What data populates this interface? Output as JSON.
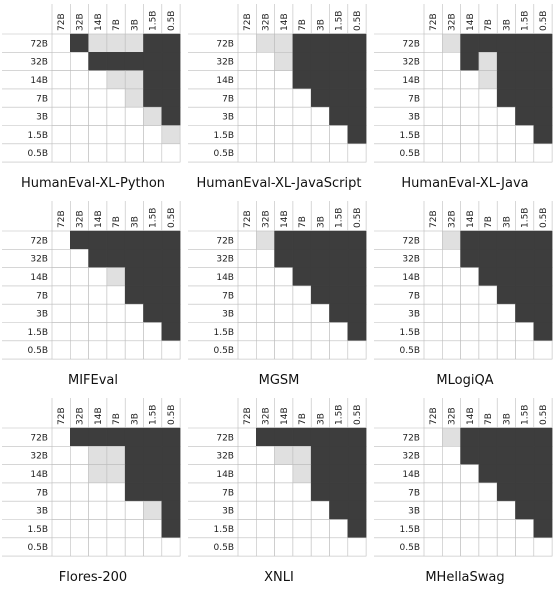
{
  "chart_data": [
    {
      "type": "heatmap",
      "title": "HumanEval-XL-Python",
      "categories": [
        "72B",
        "32B",
        "14B",
        "7B",
        "3B",
        "1.5B",
        "0.5B"
      ],
      "value_legend": {
        "0": "white",
        "1": "light gray",
        "2": "dark gray"
      },
      "colors": {
        "0": "#ffffff",
        "1": "#e0e0e0",
        "2": "#3d3d3d"
      },
      "matrix": [
        [
          0,
          2,
          1,
          1,
          1,
          2,
          2
        ],
        [
          0,
          0,
          2,
          2,
          2,
          2,
          2
        ],
        [
          0,
          0,
          0,
          1,
          1,
          2,
          2
        ],
        [
          0,
          0,
          0,
          0,
          1,
          2,
          2
        ],
        [
          0,
          0,
          0,
          0,
          0,
          1,
          2
        ],
        [
          0,
          0,
          0,
          0,
          0,
          0,
          1
        ],
        [
          0,
          0,
          0,
          0,
          0,
          0,
          0
        ]
      ]
    },
    {
      "type": "heatmap",
      "title": "HumanEval-XL-JavaScript",
      "categories": [
        "72B",
        "32B",
        "14B",
        "7B",
        "3B",
        "1.5B",
        "0.5B"
      ],
      "colors": {
        "0": "#ffffff",
        "1": "#e0e0e0",
        "2": "#3d3d3d"
      },
      "matrix": [
        [
          0,
          1,
          1,
          2,
          2,
          2,
          2
        ],
        [
          0,
          0,
          1,
          2,
          2,
          2,
          2
        ],
        [
          0,
          0,
          0,
          2,
          2,
          2,
          2
        ],
        [
          0,
          0,
          0,
          0,
          2,
          2,
          2
        ],
        [
          0,
          0,
          0,
          0,
          0,
          2,
          2
        ],
        [
          0,
          0,
          0,
          0,
          0,
          0,
          2
        ],
        [
          0,
          0,
          0,
          0,
          0,
          0,
          0
        ]
      ]
    },
    {
      "type": "heatmap",
      "title": "HumanEval-XL-Java",
      "categories": [
        "72B",
        "32B",
        "14B",
        "7B",
        "3B",
        "1.5B",
        "0.5B"
      ],
      "colors": {
        "0": "#ffffff",
        "1": "#e0e0e0",
        "2": "#3d3d3d"
      },
      "matrix": [
        [
          0,
          1,
          2,
          2,
          2,
          2,
          2
        ],
        [
          0,
          0,
          2,
          1,
          2,
          2,
          2
        ],
        [
          0,
          0,
          0,
          1,
          2,
          2,
          2
        ],
        [
          0,
          0,
          0,
          0,
          2,
          2,
          2
        ],
        [
          0,
          0,
          0,
          0,
          0,
          2,
          2
        ],
        [
          0,
          0,
          0,
          0,
          0,
          0,
          2
        ],
        [
          0,
          0,
          0,
          0,
          0,
          0,
          0
        ]
      ]
    },
    {
      "type": "heatmap",
      "title": "MIFEval",
      "categories": [
        "72B",
        "32B",
        "14B",
        "7B",
        "3B",
        "1.5B",
        "0.5B"
      ],
      "colors": {
        "0": "#ffffff",
        "1": "#e0e0e0",
        "2": "#3d3d3d"
      },
      "matrix": [
        [
          0,
          2,
          2,
          2,
          2,
          2,
          2
        ],
        [
          0,
          0,
          2,
          2,
          2,
          2,
          2
        ],
        [
          0,
          0,
          0,
          1,
          2,
          2,
          2
        ],
        [
          0,
          0,
          0,
          0,
          2,
          2,
          2
        ],
        [
          0,
          0,
          0,
          0,
          0,
          2,
          2
        ],
        [
          0,
          0,
          0,
          0,
          0,
          0,
          2
        ],
        [
          0,
          0,
          0,
          0,
          0,
          0,
          0
        ]
      ]
    },
    {
      "type": "heatmap",
      "title": "MGSM",
      "categories": [
        "72B",
        "32B",
        "14B",
        "7B",
        "3B",
        "1.5B",
        "0.5B"
      ],
      "colors": {
        "0": "#ffffff",
        "1": "#e0e0e0",
        "2": "#3d3d3d"
      },
      "matrix": [
        [
          0,
          1,
          2,
          2,
          2,
          2,
          2
        ],
        [
          0,
          0,
          2,
          2,
          2,
          2,
          2
        ],
        [
          0,
          0,
          0,
          2,
          2,
          2,
          2
        ],
        [
          0,
          0,
          0,
          0,
          2,
          2,
          2
        ],
        [
          0,
          0,
          0,
          0,
          0,
          2,
          2
        ],
        [
          0,
          0,
          0,
          0,
          0,
          0,
          2
        ],
        [
          0,
          0,
          0,
          0,
          0,
          0,
          0
        ]
      ]
    },
    {
      "type": "heatmap",
      "title": "MLogiQA",
      "categories": [
        "72B",
        "32B",
        "14B",
        "7B",
        "3B",
        "1.5B",
        "0.5B"
      ],
      "colors": {
        "0": "#ffffff",
        "1": "#e0e0e0",
        "2": "#3d3d3d"
      },
      "matrix": [
        [
          0,
          1,
          2,
          2,
          2,
          2,
          2
        ],
        [
          0,
          0,
          2,
          2,
          2,
          2,
          2
        ],
        [
          0,
          0,
          0,
          2,
          2,
          2,
          2
        ],
        [
          0,
          0,
          0,
          0,
          2,
          2,
          2
        ],
        [
          0,
          0,
          0,
          0,
          0,
          2,
          2
        ],
        [
          0,
          0,
          0,
          0,
          0,
          0,
          2
        ],
        [
          0,
          0,
          0,
          0,
          0,
          0,
          0
        ]
      ]
    },
    {
      "type": "heatmap",
      "title": "Flores-200",
      "categories": [
        "72B",
        "32B",
        "14B",
        "7B",
        "3B",
        "1.5B",
        "0.5B"
      ],
      "colors": {
        "0": "#ffffff",
        "1": "#e0e0e0",
        "2": "#3d3d3d"
      },
      "matrix": [
        [
          0,
          2,
          2,
          2,
          2,
          2,
          2
        ],
        [
          0,
          0,
          1,
          1,
          2,
          2,
          2
        ],
        [
          0,
          0,
          1,
          1,
          2,
          2,
          2
        ],
        [
          0,
          0,
          0,
          0,
          2,
          2,
          2
        ],
        [
          0,
          0,
          0,
          0,
          0,
          1,
          2
        ],
        [
          0,
          0,
          0,
          0,
          0,
          0,
          2
        ],
        [
          0,
          0,
          0,
          0,
          0,
          0,
          0
        ]
      ]
    },
    {
      "type": "heatmap",
      "title": "XNLI",
      "categories": [
        "72B",
        "32B",
        "14B",
        "7B",
        "3B",
        "1.5B",
        "0.5B"
      ],
      "colors": {
        "0": "#ffffff",
        "1": "#e0e0e0",
        "2": "#3d3d3d"
      },
      "matrix": [
        [
          0,
          2,
          2,
          2,
          2,
          2,
          2
        ],
        [
          0,
          0,
          1,
          1,
          2,
          2,
          2
        ],
        [
          0,
          0,
          0,
          1,
          2,
          2,
          2
        ],
        [
          0,
          0,
          0,
          0,
          2,
          2,
          2
        ],
        [
          0,
          0,
          0,
          0,
          0,
          2,
          2
        ],
        [
          0,
          0,
          0,
          0,
          0,
          0,
          2
        ],
        [
          0,
          0,
          0,
          0,
          0,
          0,
          0
        ]
      ]
    },
    {
      "type": "heatmap",
      "title": "MHellaSwag",
      "categories": [
        "72B",
        "32B",
        "14B",
        "7B",
        "3B",
        "1.5B",
        "0.5B"
      ],
      "colors": {
        "0": "#ffffff",
        "1": "#e0e0e0",
        "2": "#3d3d3d"
      },
      "matrix": [
        [
          0,
          1,
          2,
          2,
          2,
          2,
          2
        ],
        [
          0,
          0,
          2,
          2,
          2,
          2,
          2
        ],
        [
          0,
          0,
          0,
          2,
          2,
          2,
          2
        ],
        [
          0,
          0,
          0,
          0,
          2,
          2,
          2
        ],
        [
          0,
          0,
          0,
          0,
          0,
          2,
          2
        ],
        [
          0,
          0,
          0,
          0,
          0,
          0,
          2
        ],
        [
          0,
          0,
          0,
          0,
          0,
          0,
          0
        ]
      ]
    }
  ]
}
